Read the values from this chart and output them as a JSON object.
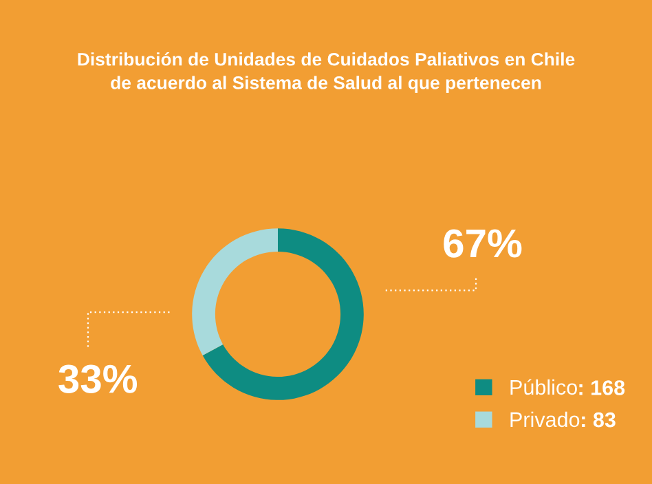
{
  "chart_data": {
    "type": "donut",
    "title": "Distribución de Unidades de Cuidados Paliativos en Chile\nde acuerdo al Sistema de Salud al que pertenecen",
    "categories": [
      "Público",
      "Privado"
    ],
    "values": [
      67,
      33
    ],
    "colors": [
      "#0e8c82",
      "#a8dadc"
    ],
    "value_labels": [
      "67%",
      "33%"
    ],
    "annotations": [
      ": 168",
      ": 83"
    ],
    "legend": "bottom right"
  }
}
